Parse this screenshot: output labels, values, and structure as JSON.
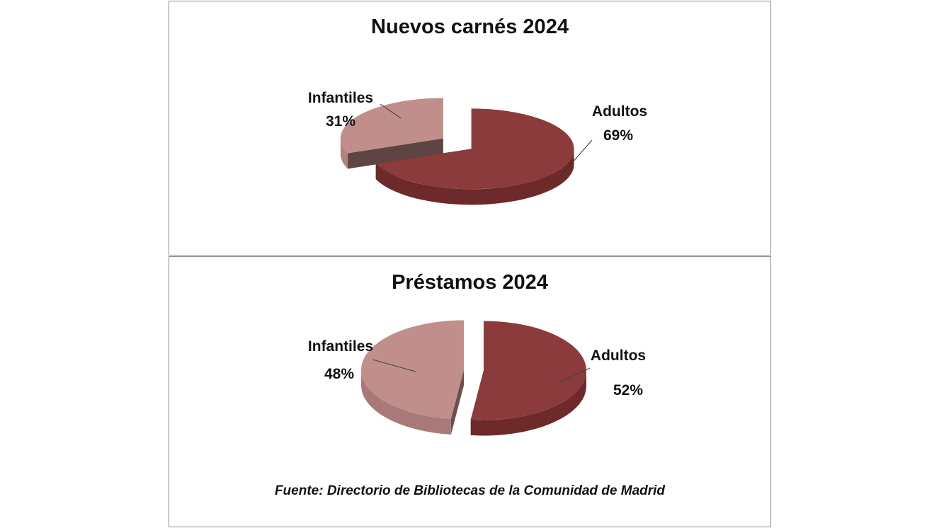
{
  "chart_data": [
    {
      "type": "pie",
      "title": "Nuevos carnés 2024",
      "slices": [
        {
          "label": "Infantiles",
          "value": 31,
          "value_label": "31%",
          "color": "#c08e8b",
          "side_color": "#b08380",
          "dark_side": "#5e4443",
          "exploded": true
        },
        {
          "label": "Adultos",
          "value": 69,
          "value_label": "69%",
          "color": "#8b3b3b",
          "side_color": "#6e2a2a",
          "dark_side": "#4d1f1f",
          "exploded": false
        }
      ]
    },
    {
      "type": "pie",
      "title": "Préstamos 2024",
      "slices": [
        {
          "label": "Infantiles",
          "value": 48,
          "value_label": "48%",
          "color": "#c08e8b",
          "side_color": "#a9797a",
          "dark_side": "#6e4f4f",
          "exploded": false
        },
        {
          "label": "Adultos",
          "value": 52,
          "value_label": "52%",
          "color": "#8b3b3b",
          "side_color": "#6e2a2a",
          "dark_side": "#4d1f1f",
          "exploded": false
        }
      ]
    }
  ],
  "source_note": "Fuente: Directorio de Bibliotecas de la Comunidad de Madrid"
}
